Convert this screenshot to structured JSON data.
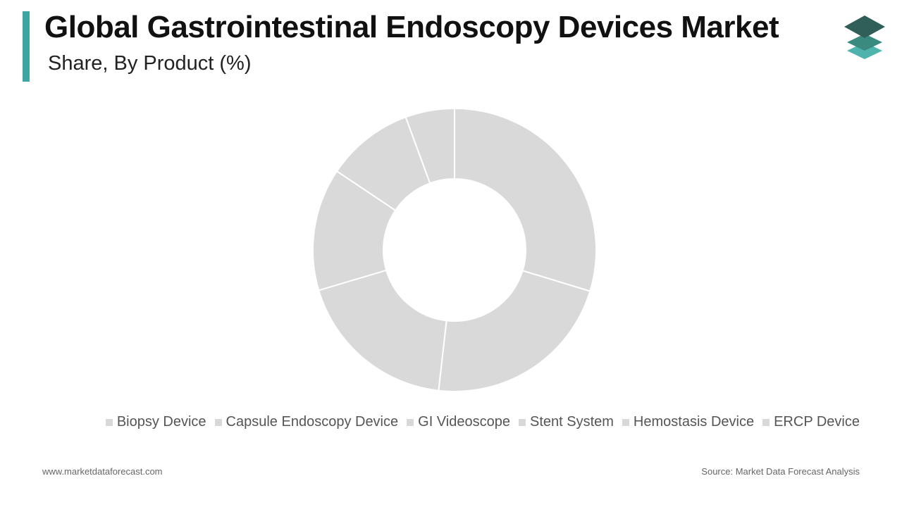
{
  "chart_data": {
    "type": "donut",
    "title": "Global Gastrointestinal Endoscopy Devices Market",
    "subtitle": "Share, By Product (%)",
    "categories": [
      "Biopsy Device",
      "Capsule Endoscopy Device",
      "GI Videoscope",
      "Stent System",
      "Hemostasis Device",
      "ERCP Device"
    ],
    "values": [
      29.7,
      22.1,
      18.6,
      14.0,
      10.0,
      5.6
    ],
    "colors": [
      "#d9d9d9",
      "#d9d9d9",
      "#d9d9d9",
      "#d9d9d9",
      "#d9d9d9",
      "#d9d9d9"
    ]
  },
  "footer": {
    "website": "www.marketdataforecast.com",
    "source": "Source: Market Data Forecast Analysis"
  }
}
